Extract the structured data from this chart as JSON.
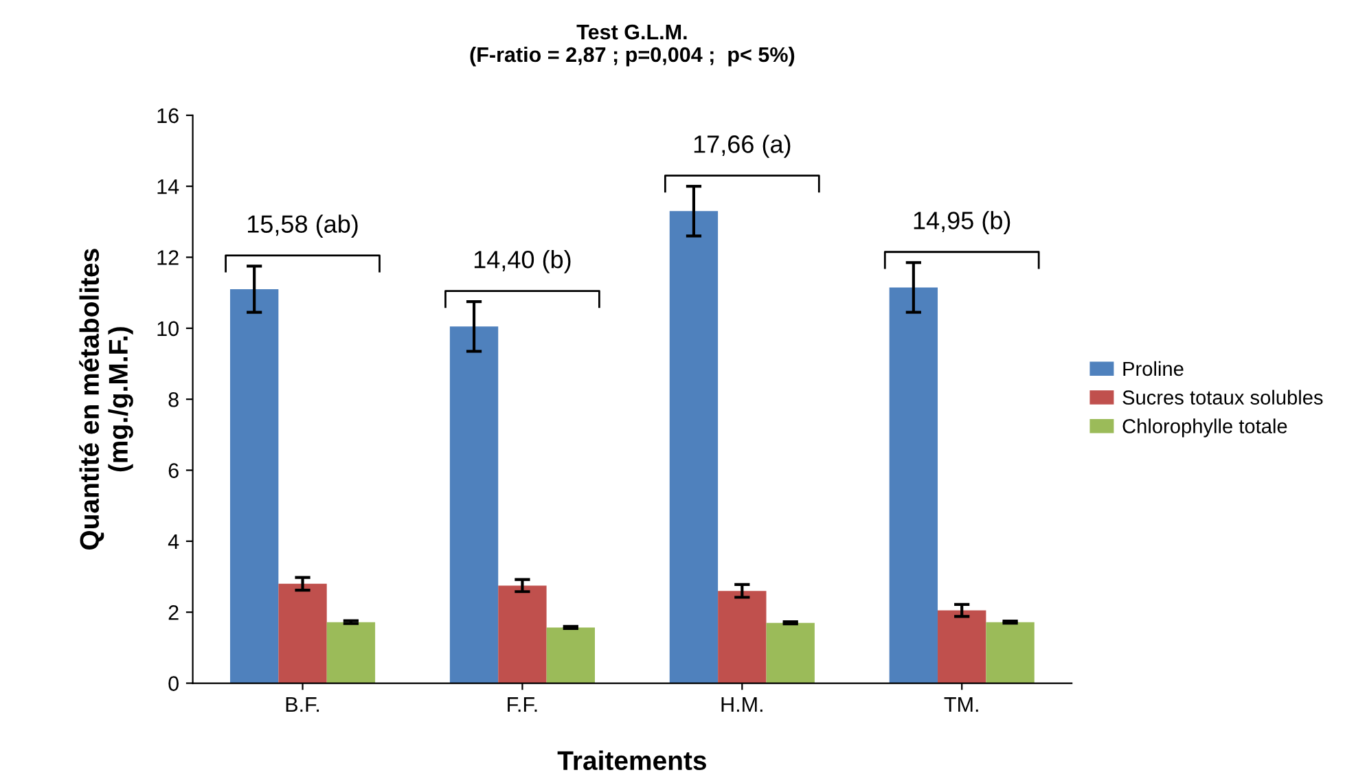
{
  "chart_data": {
    "type": "bar",
    "title": "Test G.L.M.\n(F-ratio = 2,87 ; p=0,004 ;  p< 5%)",
    "xlabel": "Traitements",
    "ylabel": "Quantité en métabolites\n(mg./g.M.F.)",
    "categories": [
      "B.F.",
      "F.F.",
      "H.M.",
      "TM."
    ],
    "series": [
      {
        "name": "Proline",
        "color": "#4f81bd",
        "values": [
          11.1,
          10.05,
          13.3,
          11.15
        ],
        "errors": [
          0.65,
          0.7,
          0.7,
          0.7
        ]
      },
      {
        "name": "Sucres totaux solubles",
        "color": "#c0504d",
        "values": [
          2.8,
          2.75,
          2.6,
          2.05
        ],
        "errors": [
          0.18,
          0.17,
          0.18,
          0.17
        ]
      },
      {
        "name": "Chlorophylle totale",
        "color": "#9bbb59",
        "values": [
          1.72,
          1.57,
          1.7,
          1.72
        ],
        "errors": [
          0.04,
          0.03,
          0.03,
          0.03
        ]
      }
    ],
    "ylim": [
      0,
      16
    ],
    "yticks": [
      0,
      2,
      4,
      6,
      8,
      10,
      12,
      14,
      16
    ],
    "grid": false,
    "legend": "right",
    "annotations": [
      "15,58 (ab)",
      "14,40 (b)",
      "17,66 (a)",
      "14,95 (b)"
    ]
  }
}
